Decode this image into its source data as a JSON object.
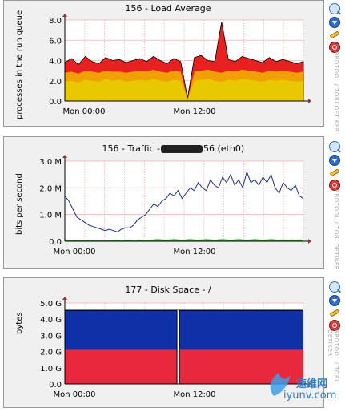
{
  "side_label": "RRDTOOL / TOBI OETIKER",
  "panels": [
    {
      "title": "156 - Load Average",
      "ylabel": "processes in the run queue",
      "xticks": [
        "Mon 00:00",
        "Mon 12:00"
      ],
      "yticks": [
        "0.0",
        "2.0",
        "4.0",
        "6.0",
        "8.0"
      ]
    },
    {
      "title_prefix": "156 - Traffic -",
      "title_suffix": "56 (eth0)",
      "ylabel": "bits per second",
      "xticks": [
        "Mon 00:00",
        "Mon 12:00"
      ],
      "yticks": [
        "0.0",
        "1.0 M",
        "2.0 M",
        "3.0 M"
      ]
    },
    {
      "title": "177 - Disk Space - /",
      "ylabel": "bytes",
      "xticks": [
        "Mon 00:00",
        "Mon 12:00"
      ],
      "yticks": [
        "0.0",
        "1.0 G",
        "2.0 G",
        "3.0 G",
        "4.0 G",
        "5.0 G"
      ]
    }
  ],
  "watermark": {
    "cn": "速维网",
    "url": "iyunv.com"
  },
  "chart_data": [
    {
      "type": "area",
      "title": "156 - Load Average",
      "ylabel": "processes in the run queue",
      "ylim": [
        0,
        8
      ],
      "x_ticks": [
        "Mon 00:00",
        "Mon 12:00"
      ],
      "series": [
        {
          "color": "#e8c800",
          "values": [
            1.9,
            2.0,
            1.8,
            2.1,
            2.0,
            1.9,
            2.2,
            2.0,
            2.1,
            1.9,
            2.0,
            2.1,
            2.0,
            2.2,
            2.0,
            1.9,
            2.1,
            2.0,
            0.1,
            2.0,
            2.1,
            2.2,
            2.0,
            1.9,
            2.1,
            2.0,
            2.2,
            2.1,
            2.0,
            1.9,
            2.1,
            2.0,
            2.1,
            2.0,
            1.9,
            2.0
          ]
        },
        {
          "color": "#f0a000",
          "values": [
            2.8,
            2.9,
            2.7,
            3.0,
            2.9,
            2.8,
            3.0,
            2.9,
            2.9,
            2.8,
            2.9,
            3.0,
            2.9,
            3.1,
            2.9,
            2.8,
            3.0,
            2.9,
            0.2,
            2.9,
            3.0,
            3.1,
            2.9,
            2.8,
            3.0,
            2.9,
            3.1,
            3.0,
            2.9,
            2.8,
            3.0,
            2.9,
            3.0,
            2.9,
            2.8,
            2.9
          ]
        },
        {
          "color": "#e82020",
          "values": [
            3.8,
            4.2,
            3.6,
            4.4,
            3.9,
            3.7,
            4.3,
            4.0,
            4.1,
            3.8,
            4.0,
            4.2,
            3.9,
            4.4,
            4.0,
            3.7,
            4.2,
            3.9,
            0.3,
            4.3,
            4.5,
            4.0,
            3.9,
            7.8,
            4.1,
            3.9,
            4.4,
            4.2,
            4.0,
            3.8,
            4.3,
            3.9,
            4.1,
            3.9,
            3.7,
            3.9
          ]
        }
      ]
    },
    {
      "type": "line",
      "title": "156 - Traffic - 56 (eth0)",
      "ylabel": "bits per second",
      "ylim": [
        0,
        3000000
      ],
      "x_ticks": [
        "Mon 00:00",
        "Mon 12:00"
      ],
      "series": [
        {
          "color": "#1a2f80",
          "values": [
            1.7,
            1.5,
            1.2,
            0.9,
            0.8,
            0.7,
            0.6,
            0.55,
            0.5,
            0.45,
            0.4,
            0.45,
            0.4,
            0.35,
            0.45,
            0.5,
            0.5,
            0.6,
            0.8,
            0.9,
            1.0,
            1.2,
            1.4,
            1.3,
            1.5,
            1.6,
            1.8,
            1.7,
            1.9,
            1.6,
            1.8,
            2.0,
            1.9,
            2.2,
            2.0,
            1.9,
            2.3,
            2.1,
            2.0,
            2.4,
            2.2,
            2.5,
            2.1,
            2.3,
            2.0,
            2.6,
            2.2,
            2.3,
            2.1,
            2.4,
            2.2,
            2.5,
            2.0,
            1.8,
            2.2,
            2.0,
            1.9,
            2.1,
            1.7,
            1.6
          ]
        },
        {
          "color": "#2ab82a",
          "values": [
            0.07,
            0.06,
            0.05,
            0.06,
            0.05,
            0.05,
            0.04,
            0.05,
            0.04,
            0.04,
            0.05,
            0.04,
            0.04,
            0.05,
            0.04,
            0.05,
            0.05,
            0.04,
            0.05,
            0.06,
            0.05,
            0.06,
            0.07,
            0.08,
            0.07,
            0.06,
            0.07,
            0.08,
            0.07,
            0.06,
            0.07,
            0.08,
            0.07,
            0.06,
            0.07,
            0.08,
            0.07,
            0.06,
            0.07,
            0.08,
            0.07,
            0.06,
            0.07,
            0.08,
            0.07,
            0.06,
            0.07,
            0.08,
            0.07,
            0.06,
            0.07,
            0.08,
            0.07,
            0.06,
            0.07,
            0.06,
            0.07,
            0.06,
            0.07,
            0.06
          ]
        }
      ]
    },
    {
      "type": "area",
      "title": "177 - Disk Space - /",
      "ylabel": "bytes",
      "ylim": [
        0,
        5
      ],
      "x_ticks": [
        "Mon 00:00",
        "Mon 12:00"
      ],
      "series": [
        {
          "color": "#e8283c",
          "values": [
            2.1,
            2.1
          ]
        },
        {
          "color": "#1030a8",
          "values": [
            4.55,
            4.55
          ]
        }
      ]
    }
  ]
}
